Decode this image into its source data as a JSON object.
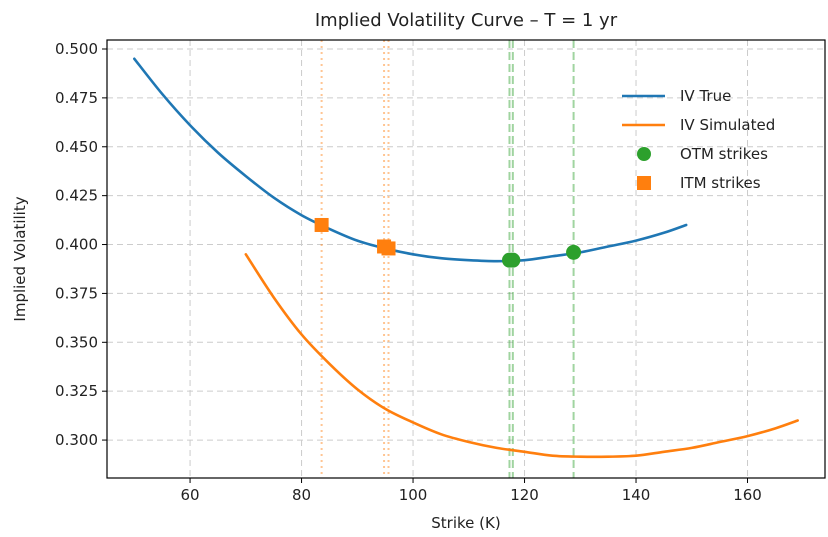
{
  "chart_data": {
    "type": "line",
    "title": "Implied Volatility Curve – T = 1 yr",
    "xlabel": "Strike (K)",
    "ylabel": "Implied Volatility",
    "xlim": [
      45.1,
      173.9
    ],
    "ylim": [
      0.2806,
      0.5046
    ],
    "xticks": [
      60,
      80,
      100,
      120,
      140,
      160
    ],
    "xtick_labels": [
      "60",
      "80",
      "100",
      "120",
      "140",
      "160"
    ],
    "yticks": [
      0.3,
      0.325,
      0.35,
      0.375,
      0.4,
      0.425,
      0.45,
      0.475,
      0.5
    ],
    "ytick_labels": [
      "0.300",
      "0.325",
      "0.350",
      "0.375",
      "0.400",
      "0.425",
      "0.450",
      "0.475",
      "0.500"
    ],
    "grid": true,
    "legend_position": "top-right",
    "series": [
      {
        "name": "IV True",
        "kind": "line",
        "color": "#1f77b4",
        "x": [
          50,
          55,
          60,
          65,
          70,
          75,
          80,
          85,
          90,
          95,
          100,
          105,
          110,
          115,
          120,
          125,
          130,
          135,
          140,
          145,
          149
        ],
        "y": [
          0.495,
          0.477,
          0.461,
          0.447,
          0.435,
          0.424,
          0.415,
          0.408,
          0.402,
          0.398,
          0.395,
          0.393,
          0.392,
          0.3915,
          0.392,
          0.394,
          0.396,
          0.399,
          0.402,
          0.406,
          0.41
        ]
      },
      {
        "name": "IV Simulated",
        "kind": "line",
        "color": "#ff7f0e",
        "x": [
          70,
          75,
          80,
          85,
          90,
          95,
          100,
          105,
          110,
          115,
          120,
          125,
          130,
          135,
          140,
          145,
          150,
          155,
          160,
          165,
          169
        ],
        "y": [
          0.395,
          0.373,
          0.354,
          0.339,
          0.326,
          0.316,
          0.309,
          0.303,
          0.299,
          0.296,
          0.294,
          0.292,
          0.2915,
          0.2915,
          0.292,
          0.294,
          0.296,
          0.299,
          0.302,
          0.306,
          0.31
        ]
      },
      {
        "name": "OTM strikes",
        "kind": "scatter",
        "marker": "circle",
        "color": "#2ca02c",
        "x": [
          117.3,
          117.9,
          128.8
        ],
        "y": [
          0.392,
          0.392,
          0.396
        ]
      },
      {
        "name": "ITM strikes",
        "kind": "scatter",
        "marker": "square",
        "color": "#ff7f0e",
        "x": [
          83.6,
          94.8,
          95.6
        ],
        "y": [
          0.41,
          0.399,
          0.398
        ]
      }
    ],
    "vlines": [
      {
        "x": 83.6,
        "style": "dotted",
        "color": "#ff7f0e"
      },
      {
        "x": 94.8,
        "style": "dotted",
        "color": "#ff7f0e"
      },
      {
        "x": 95.6,
        "style": "dotted",
        "color": "#ff7f0e"
      },
      {
        "x": 117.3,
        "style": "dashed",
        "color": "#2ca02c"
      },
      {
        "x": 117.9,
        "style": "dashed",
        "color": "#2ca02c"
      },
      {
        "x": 128.8,
        "style": "dashed",
        "color": "#2ca02c"
      }
    ]
  }
}
